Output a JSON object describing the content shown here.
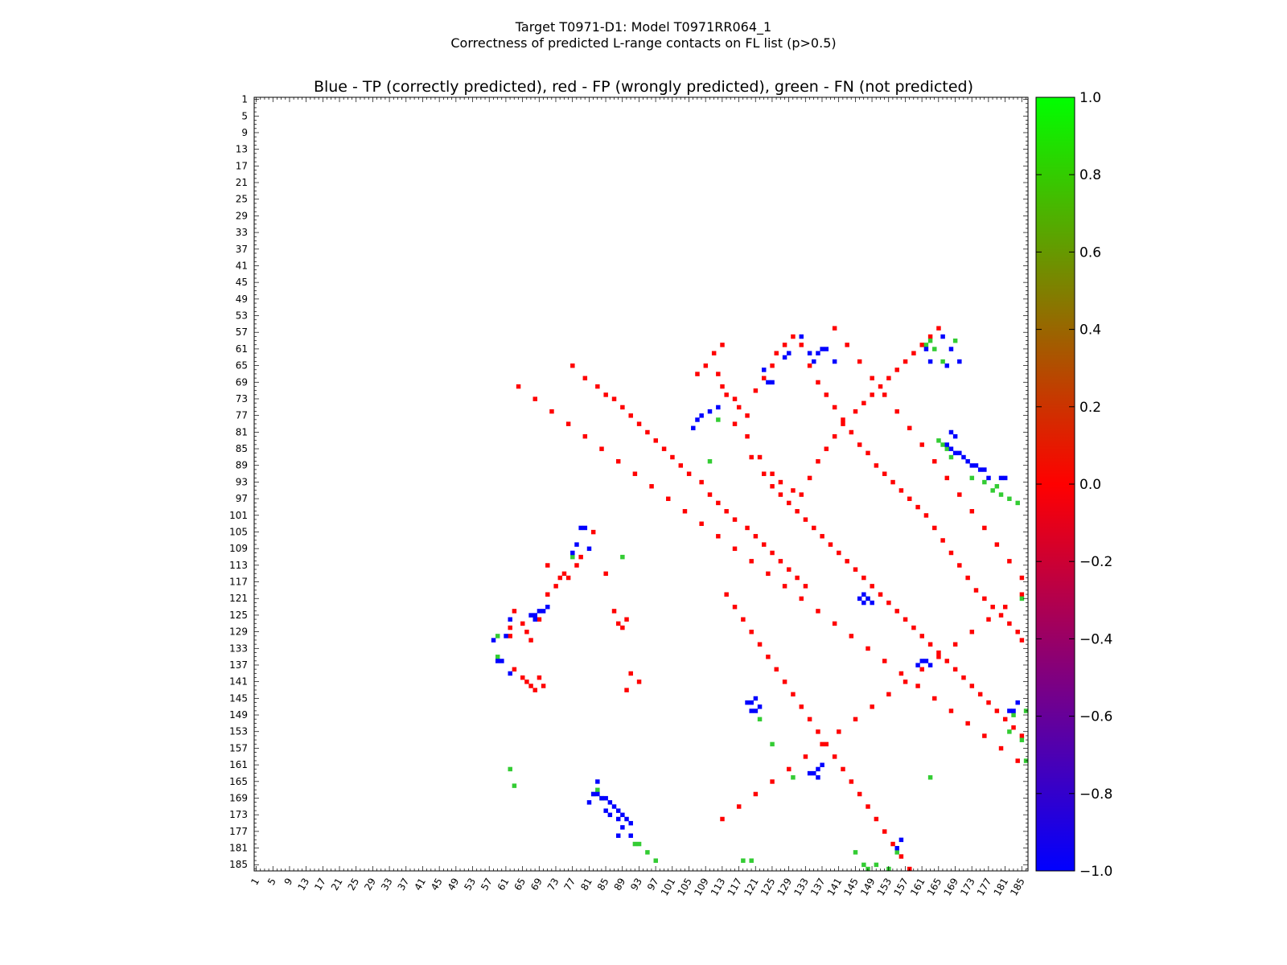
{
  "chart_data": {
    "type": "heatmap",
    "title_line1": "Target T0971-D1: Model T0971RR064_1",
    "title_line2": "Correctness of predicted L-range contacts on FL list (p>0.5)",
    "subtitle": "Blue - TP (correctly predicted), red - FP (wrongly predicted), green - FN (not predicted)",
    "n_residues": 186,
    "tick_labels": [
      "1",
      "5",
      "9",
      "13",
      "17",
      "21",
      "25",
      "29",
      "33",
      "37",
      "41",
      "45",
      "49",
      "53",
      "57",
      "61",
      "65",
      "69",
      "73",
      "77",
      "81",
      "85",
      "89",
      "93",
      "97",
      "101",
      "105",
      "109",
      "113",
      "117",
      "121",
      "125",
      "129",
      "133",
      "137",
      "141",
      "145",
      "149",
      "153",
      "157",
      "161",
      "165",
      "169",
      "173",
      "177",
      "181",
      "185"
    ],
    "legend": {
      "min": -1.0,
      "max": 1.0,
      "min_color": "#0000ff",
      "mid_color": "#ff0000",
      "max_color": "#00ff00"
    },
    "colorbar_ticks": [
      "−1.0",
      "−0.8",
      "−0.6",
      "−0.4",
      "−0.2",
      "0.0",
      "0.2",
      "0.4",
      "0.6",
      "0.8",
      "1.0"
    ],
    "colors": {
      "TP": "#0000ff",
      "FP": "#ff0000",
      "FN": "#33cc33"
    },
    "TP": [
      [
        58,
        131
      ],
      [
        61,
        130
      ],
      [
        62,
        126
      ],
      [
        59,
        136
      ],
      [
        60,
        136
      ],
      [
        62,
        139
      ],
      [
        67,
        125
      ],
      [
        68,
        125
      ],
      [
        69,
        124
      ],
      [
        68,
        126
      ],
      [
        70,
        124
      ],
      [
        71,
        123
      ],
      [
        77,
        110
      ],
      [
        78,
        108
      ],
      [
        79,
        104
      ],
      [
        80,
        104
      ],
      [
        81,
        109
      ],
      [
        83,
        165
      ],
      [
        81,
        170
      ],
      [
        82,
        168
      ],
      [
        83,
        168
      ],
      [
        84,
        169
      ],
      [
        85,
        169
      ],
      [
        86,
        170
      ],
      [
        87,
        171
      ],
      [
        88,
        172
      ],
      [
        89,
        173
      ],
      [
        90,
        174
      ],
      [
        91,
        175
      ],
      [
        85,
        172
      ],
      [
        86,
        173
      ],
      [
        88,
        174
      ],
      [
        89,
        176
      ],
      [
        88,
        178
      ],
      [
        91,
        178
      ],
      [
        106,
        80
      ],
      [
        107,
        78
      ],
      [
        108,
        77
      ],
      [
        110,
        76
      ],
      [
        112,
        75
      ],
      [
        119,
        146
      ],
      [
        120,
        146
      ],
      [
        121,
        145
      ],
      [
        122,
        147
      ],
      [
        120,
        148
      ],
      [
        121,
        148
      ],
      [
        124,
        69
      ],
      [
        125,
        69
      ],
      [
        123,
        66
      ],
      [
        128,
        63
      ],
      [
        129,
        62
      ],
      [
        132,
        58
      ],
      [
        134,
        62
      ],
      [
        135,
        64
      ],
      [
        136,
        62
      ],
      [
        137,
        61
      ],
      [
        134,
        163
      ],
      [
        135,
        163
      ],
      [
        136,
        162
      ],
      [
        136,
        164
      ],
      [
        137,
        161
      ],
      [
        138,
        61
      ],
      [
        140,
        64
      ],
      [
        146,
        121
      ],
      [
        147,
        120
      ],
      [
        148,
        121
      ],
      [
        149,
        122
      ],
      [
        147,
        122
      ],
      [
        155,
        181
      ],
      [
        156,
        179
      ],
      [
        160,
        137
      ],
      [
        161,
        136
      ],
      [
        162,
        136
      ],
      [
        163,
        137
      ],
      [
        162,
        61
      ],
      [
        163,
        64
      ],
      [
        167,
        65
      ],
      [
        166,
        58
      ],
      [
        168,
        81
      ],
      [
        169,
        82
      ],
      [
        167,
        84
      ],
      [
        168,
        85
      ],
      [
        169,
        86
      ],
      [
        170,
        86
      ],
      [
        171,
        87
      ],
      [
        172,
        88
      ],
      [
        173,
        89
      ],
      [
        174,
        89
      ],
      [
        175,
        90
      ],
      [
        176,
        90
      ],
      [
        177,
        92
      ],
      [
        170,
        64
      ],
      [
        168,
        61
      ],
      [
        180,
        92
      ],
      [
        181,
        92
      ],
      [
        182,
        148
      ],
      [
        183,
        148
      ],
      [
        184,
        146
      ]
    ],
    "FP": [
      [
        62,
        128
      ],
      [
        62,
        130
      ],
      [
        63,
        138
      ],
      [
        65,
        140
      ],
      [
        66,
        141
      ],
      [
        67,
        142
      ],
      [
        68,
        143
      ],
      [
        69,
        140
      ],
      [
        70,
        142
      ],
      [
        63,
        124
      ],
      [
        65,
        127
      ],
      [
        66,
        129
      ],
      [
        67,
        131
      ],
      [
        69,
        126
      ],
      [
        71,
        120
      ],
      [
        71,
        113
      ],
      [
        73,
        118
      ],
      [
        74,
        116
      ],
      [
        75,
        115
      ],
      [
        76,
        116
      ],
      [
        78,
        113
      ],
      [
        79,
        111
      ],
      [
        82,
        105
      ],
      [
        85,
        115
      ],
      [
        87,
        124
      ],
      [
        88,
        127
      ],
      [
        89,
        128
      ],
      [
        90,
        126
      ],
      [
        91,
        139
      ],
      [
        90,
        143
      ],
      [
        93,
        141
      ],
      [
        77,
        65
      ],
      [
        80,
        68
      ],
      [
        83,
        70
      ],
      [
        85,
        72
      ],
      [
        87,
        73
      ],
      [
        89,
        75
      ],
      [
        91,
        77
      ],
      [
        93,
        79
      ],
      [
        95,
        81
      ],
      [
        97,
        83
      ],
      [
        99,
        85
      ],
      [
        101,
        87
      ],
      [
        103,
        89
      ],
      [
        105,
        91
      ],
      [
        108,
        93
      ],
      [
        110,
        96
      ],
      [
        112,
        98
      ],
      [
        114,
        100
      ],
      [
        116,
        102
      ],
      [
        119,
        104
      ],
      [
        121,
        106
      ],
      [
        123,
        108
      ],
      [
        125,
        110
      ],
      [
        127,
        112
      ],
      [
        129,
        114
      ],
      [
        131,
        116
      ],
      [
        133,
        118
      ],
      [
        107,
        67
      ],
      [
        109,
        65
      ],
      [
        111,
        62
      ],
      [
        113,
        60
      ],
      [
        116,
        79
      ],
      [
        119,
        82
      ],
      [
        122,
        87
      ],
      [
        125,
        91
      ],
      [
        127,
        93
      ],
      [
        130,
        95
      ],
      [
        132,
        96
      ],
      [
        134,
        92
      ],
      [
        136,
        88
      ],
      [
        138,
        85
      ],
      [
        140,
        82
      ],
      [
        142,
        79
      ],
      [
        145,
        76
      ],
      [
        147,
        74
      ],
      [
        149,
        72
      ],
      [
        151,
        70
      ],
      [
        153,
        68
      ],
      [
        155,
        66
      ],
      [
        157,
        64
      ],
      [
        159,
        62
      ],
      [
        161,
        60
      ],
      [
        163,
        58
      ],
      [
        165,
        56
      ],
      [
        112,
        67
      ],
      [
        113,
        70
      ],
      [
        114,
        72
      ],
      [
        116,
        73
      ],
      [
        117,
        75
      ],
      [
        119,
        77
      ],
      [
        121,
        71
      ],
      [
        123,
        68
      ],
      [
        125,
        65
      ],
      [
        126,
        62
      ],
      [
        128,
        60
      ],
      [
        130,
        58
      ],
      [
        132,
        60
      ],
      [
        134,
        65
      ],
      [
        136,
        69
      ],
      [
        138,
        72
      ],
      [
        140,
        75
      ],
      [
        142,
        78
      ],
      [
        144,
        81
      ],
      [
        146,
        84
      ],
      [
        148,
        86
      ],
      [
        150,
        89
      ],
      [
        152,
        91
      ],
      [
        154,
        93
      ],
      [
        156,
        95
      ],
      [
        158,
        97
      ],
      [
        160,
        99
      ],
      [
        162,
        101
      ],
      [
        164,
        104
      ],
      [
        166,
        107
      ],
      [
        168,
        110
      ],
      [
        170,
        113
      ],
      [
        172,
        116
      ],
      [
        174,
        119
      ],
      [
        176,
        121
      ],
      [
        178,
        123
      ],
      [
        180,
        125
      ],
      [
        182,
        127
      ],
      [
        184,
        129
      ],
      [
        185,
        131
      ],
      [
        120,
        87
      ],
      [
        123,
        91
      ],
      [
        125,
        94
      ],
      [
        127,
        96
      ],
      [
        129,
        98
      ],
      [
        131,
        100
      ],
      [
        133,
        102
      ],
      [
        135,
        104
      ],
      [
        137,
        106
      ],
      [
        139,
        108
      ],
      [
        141,
        110
      ],
      [
        143,
        112
      ],
      [
        145,
        114
      ],
      [
        147,
        116
      ],
      [
        149,
        118
      ],
      [
        151,
        120
      ],
      [
        153,
        122
      ],
      [
        155,
        124
      ],
      [
        157,
        126
      ],
      [
        159,
        128
      ],
      [
        161,
        130
      ],
      [
        163,
        132
      ],
      [
        165,
        134
      ],
      [
        167,
        136
      ],
      [
        169,
        138
      ],
      [
        171,
        140
      ],
      [
        173,
        142
      ],
      [
        175,
        144
      ],
      [
        177,
        146
      ],
      [
        179,
        148
      ],
      [
        181,
        150
      ],
      [
        183,
        152
      ],
      [
        185,
        154
      ],
      [
        140,
        56
      ],
      [
        143,
        60
      ],
      [
        146,
        64
      ],
      [
        149,
        68
      ],
      [
        152,
        72
      ],
      [
        155,
        76
      ],
      [
        158,
        80
      ],
      [
        161,
        84
      ],
      [
        164,
        88
      ],
      [
        167,
        92
      ],
      [
        170,
        96
      ],
      [
        173,
        100
      ],
      [
        176,
        104
      ],
      [
        179,
        108
      ],
      [
        182,
        112
      ],
      [
        185,
        116
      ],
      [
        114,
        120
      ],
      [
        116,
        123
      ],
      [
        118,
        126
      ],
      [
        120,
        129
      ],
      [
        122,
        132
      ],
      [
        124,
        135
      ],
      [
        126,
        138
      ],
      [
        128,
        141
      ],
      [
        130,
        144
      ],
      [
        132,
        147
      ],
      [
        134,
        150
      ],
      [
        136,
        153
      ],
      [
        138,
        156
      ],
      [
        140,
        159
      ],
      [
        142,
        162
      ],
      [
        144,
        165
      ],
      [
        146,
        168
      ],
      [
        148,
        171
      ],
      [
        150,
        174
      ],
      [
        152,
        177
      ],
      [
        154,
        180
      ],
      [
        156,
        183
      ],
      [
        158,
        186
      ],
      [
        113,
        174
      ],
      [
        117,
        171
      ],
      [
        121,
        168
      ],
      [
        125,
        165
      ],
      [
        129,
        162
      ],
      [
        133,
        159
      ],
      [
        137,
        156
      ],
      [
        141,
        153
      ],
      [
        145,
        150
      ],
      [
        149,
        147
      ],
      [
        153,
        144
      ],
      [
        157,
        141
      ],
      [
        161,
        138
      ],
      [
        165,
        135
      ],
      [
        169,
        132
      ],
      [
        173,
        129
      ],
      [
        177,
        126
      ],
      [
        181,
        123
      ],
      [
        185,
        120
      ],
      [
        64,
        70
      ],
      [
        68,
        73
      ],
      [
        72,
        76
      ],
      [
        76,
        79
      ],
      [
        80,
        82
      ],
      [
        84,
        85
      ],
      [
        88,
        88
      ],
      [
        92,
        91
      ],
      [
        96,
        94
      ],
      [
        100,
        97
      ],
      [
        104,
        100
      ],
      [
        108,
        103
      ],
      [
        112,
        106
      ],
      [
        116,
        109
      ],
      [
        120,
        112
      ],
      [
        124,
        115
      ],
      [
        128,
        118
      ],
      [
        132,
        121
      ],
      [
        136,
        124
      ],
      [
        140,
        127
      ],
      [
        144,
        130
      ],
      [
        148,
        133
      ],
      [
        152,
        136
      ],
      [
        156,
        139
      ],
      [
        160,
        142
      ],
      [
        164,
        145
      ],
      [
        168,
        148
      ],
      [
        172,
        151
      ],
      [
        176,
        154
      ],
      [
        180,
        157
      ],
      [
        184,
        160
      ]
    ],
    "FN": [
      [
        59,
        130
      ],
      [
        59,
        135
      ],
      [
        62,
        162
      ],
      [
        63,
        166
      ],
      [
        77,
        111
      ],
      [
        82,
        168
      ],
      [
        83,
        167
      ],
      [
        84,
        169
      ],
      [
        89,
        111
      ],
      [
        92,
        180
      ],
      [
        93,
        180
      ],
      [
        95,
        182
      ],
      [
        97,
        184
      ],
      [
        110,
        88
      ],
      [
        112,
        78
      ],
      [
        118,
        184
      ],
      [
        120,
        184
      ],
      [
        122,
        150
      ],
      [
        125,
        156
      ],
      [
        130,
        164
      ],
      [
        145,
        182
      ],
      [
        147,
        185
      ],
      [
        148,
        186
      ],
      [
        150,
        185
      ],
      [
        153,
        186
      ],
      [
        155,
        182
      ],
      [
        162,
        60
      ],
      [
        163,
        164
      ],
      [
        165,
        83
      ],
      [
        166,
        84
      ],
      [
        167,
        85
      ],
      [
        168,
        87
      ],
      [
        169,
        59
      ],
      [
        173,
        92
      ],
      [
        176,
        93
      ],
      [
        178,
        95
      ],
      [
        179,
        94
      ],
      [
        180,
        96
      ],
      [
        182,
        97
      ],
      [
        184,
        98
      ],
      [
        185,
        121
      ],
      [
        186,
        148
      ],
      [
        183,
        149
      ],
      [
        182,
        153
      ],
      [
        185,
        155
      ],
      [
        186,
        160
      ],
      [
        148,
        121
      ],
      [
        163,
        59
      ],
      [
        164,
        61
      ],
      [
        166,
        64
      ]
    ]
  }
}
